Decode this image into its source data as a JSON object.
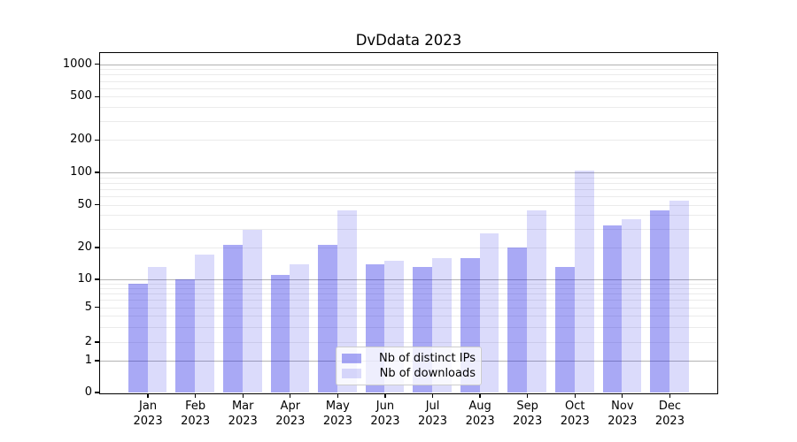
{
  "title": "DvDdata 2023",
  "legend": {
    "position": "lower center",
    "items": [
      {
        "label": "Nb of distinct IPs"
      },
      {
        "label": "Nb of downloads"
      }
    ]
  },
  "chart_data": {
    "type": "bar",
    "title": "DvDdata 2023",
    "categories": [
      "Jan 2023",
      "Feb 2023",
      "Mar 2023",
      "Apr 2023",
      "May 2023",
      "Jun 2023",
      "Jul 2023",
      "Aug 2023",
      "Sep 2023",
      "Oct 2023",
      "Nov 2023",
      "Dec 2023"
    ],
    "series": [
      {
        "name": "Nb of distinct IPs",
        "values": [
          9,
          10,
          21,
          11,
          21,
          14,
          13,
          16,
          20,
          13,
          32,
          44
        ],
        "color": "rgba(30,30,230,0.38)"
      },
      {
        "name": "Nb of downloads",
        "values": [
          13,
          17,
          29,
          14,
          44,
          15,
          16,
          27,
          44,
          104,
          37,
          55
        ],
        "color": "rgba(30,30,230,0.16)"
      }
    ],
    "xlabel": "",
    "ylabel": "",
    "y_axis": {
      "scale": "symlog",
      "tick_labels": [
        "0",
        "1",
        "2",
        "5",
        "10",
        "20",
        "50",
        "100",
        "200",
        "500",
        "1000"
      ],
      "tick_values": [
        0,
        1,
        2,
        5,
        10,
        20,
        50,
        100,
        200,
        500,
        1000
      ],
      "major_grid_values": [
        1,
        10,
        100,
        1000
      ],
      "ylim_bottom": 0
    },
    "grid": "both",
    "legend_position": "lower center",
    "colors": {
      "bar_distinct_ips_rendered": "#a9a9f6",
      "bar_downloads_rendered": "#dcdcf9",
      "grid_major": "#b2b2b2",
      "grid_minor": "#ebebeb",
      "spine": "#000000",
      "background": "#ffffff"
    }
  }
}
